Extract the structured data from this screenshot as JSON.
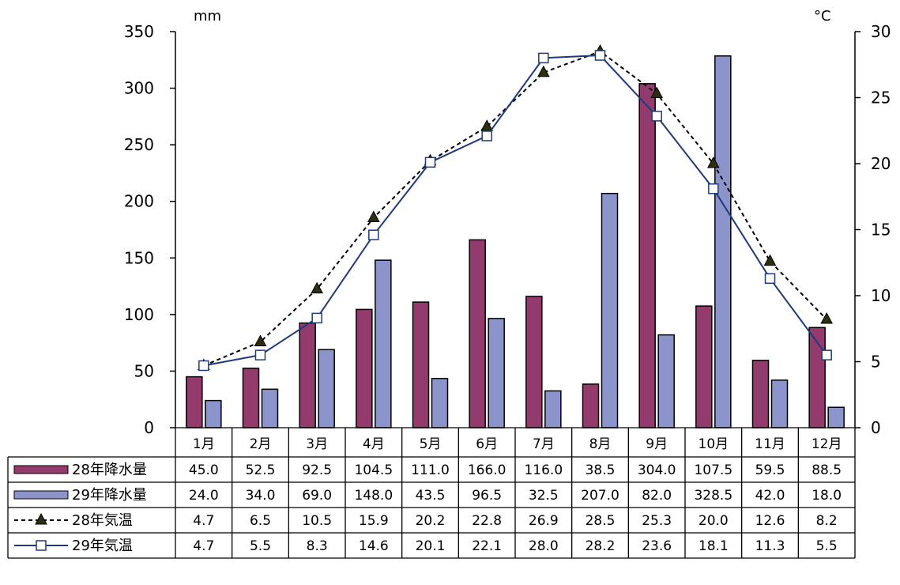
{
  "chart_data": {
    "type": "bar",
    "title": "",
    "categories": [
      "1月",
      "2月",
      "3月",
      "4月",
      "5月",
      "6月",
      "7月",
      "8月",
      "9月",
      "10月",
      "11月",
      "12月"
    ],
    "y_left": {
      "unit": "mm",
      "ylim": [
        0,
        350
      ],
      "ticks": [
        "0",
        "50",
        "100",
        "150",
        "200",
        "250",
        "300",
        "350"
      ]
    },
    "y_right": {
      "unit": "°C",
      "ylim": [
        0,
        30
      ],
      "ticks": [
        "0",
        "5",
        "10",
        "15",
        "20",
        "25",
        "30"
      ]
    },
    "series": [
      {
        "name": "28年降水量",
        "kind": "bar",
        "axis": "left",
        "color": "#943b6e",
        "values": [
          45.0,
          52.5,
          92.5,
          104.5,
          111.0,
          166.0,
          116.0,
          38.5,
          304.0,
          107.5,
          59.5,
          88.5
        ],
        "labels": [
          "45.0",
          "52.5",
          "92.5",
          "104.5",
          "111.0",
          "166.0",
          "116.0",
          "38.5",
          "304.0",
          "107.5",
          "59.5",
          "88.5"
        ]
      },
      {
        "name": "29年降水量",
        "kind": "bar",
        "axis": "left",
        "color": "#8c94cc",
        "values": [
          24.0,
          34.0,
          69.0,
          148.0,
          43.5,
          96.5,
          32.5,
          207.0,
          82.0,
          328.5,
          42.0,
          18.0
        ],
        "labels": [
          "24.0",
          "34.0",
          "69.0",
          "148.0",
          "43.5",
          "96.5",
          "32.5",
          "207.0",
          "82.0",
          "328.5",
          "42.0",
          "18.0"
        ]
      },
      {
        "name": "28年気温",
        "kind": "line",
        "axis": "right",
        "color": "#000000",
        "marker": "triangle",
        "dash": true,
        "values": [
          4.7,
          6.5,
          10.5,
          15.9,
          20.2,
          22.8,
          26.9,
          28.5,
          25.3,
          20.0,
          12.6,
          8.2
        ],
        "labels": [
          "4.7",
          "6.5",
          "10.5",
          "15.9",
          "20.2",
          "22.8",
          "26.9",
          "28.5",
          "25.3",
          "20.0",
          "12.6",
          "8.2"
        ]
      },
      {
        "name": "29年気温",
        "kind": "line",
        "axis": "right",
        "color": "#1f3a7a",
        "marker": "square",
        "dash": false,
        "values": [
          4.7,
          5.5,
          8.3,
          14.6,
          20.1,
          22.1,
          28.0,
          28.2,
          23.6,
          18.1,
          11.3,
          5.5
        ],
        "labels": [
          "4.7",
          "5.5",
          "8.3",
          "14.6",
          "20.1",
          "22.1",
          "28.0",
          "28.2",
          "23.6",
          "18.1",
          "11.3",
          "5.5"
        ]
      }
    ],
    "data_table": true,
    "grid": false
  }
}
